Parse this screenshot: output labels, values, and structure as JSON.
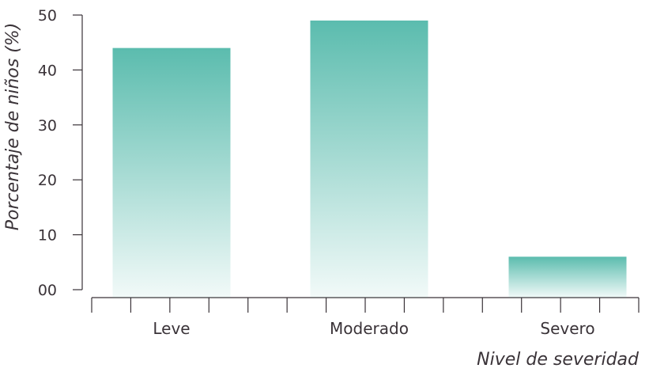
{
  "chart_data": {
    "type": "bar",
    "categories": [
      "Leve",
      "Moderado",
      "Severo"
    ],
    "values": [
      44,
      49,
      6
    ],
    "xlabel": "Nivel de severidad",
    "ylabel": "Porcentaje de niños (%)",
    "ylim": [
      0,
      50
    ],
    "yticks": [
      "00",
      "10",
      "20",
      "30",
      "40",
      "50"
    ],
    "grid": false,
    "bar_color": "#5bbcae",
    "axis_color": "#3a3338"
  }
}
